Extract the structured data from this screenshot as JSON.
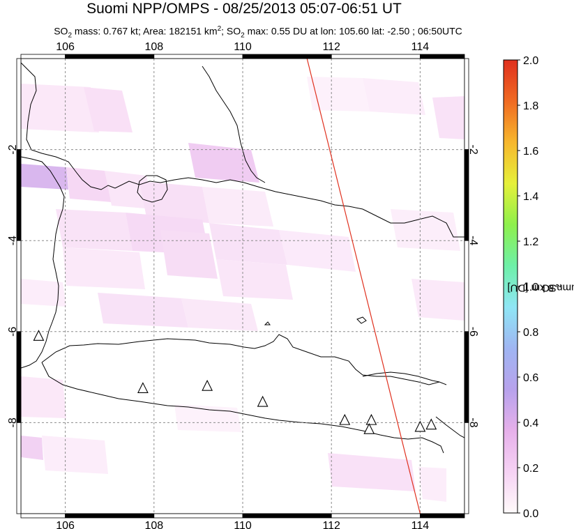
{
  "title": "Suomi NPP/OMPS - 08/25/2013 05:07-06:51 UT",
  "subtitle": {
    "prefix": "SO",
    "prefix_sub": "2",
    "mass": " mass: 0.767 kt; Area: 182151 km",
    "area_sup": "2",
    "sep": "; SO",
    "max_sub": "2",
    "rest": " max: 0.55 DU at lon: 105.60 lat: -2.50 ; 06:50UTC"
  },
  "map": {
    "lon_range": [
      105,
      115
    ],
    "lat_range": [
      -10,
      0
    ],
    "lon_ticks": [
      "106",
      "108",
      "110",
      "112",
      "114"
    ],
    "lat_ticks": [
      "-2",
      "-4",
      "-6",
      "-8"
    ],
    "orbit_line": {
      "from": {
        "lon": 111.45,
        "lat": 0
      },
      "to": {
        "lon": 114.0,
        "lat": -10
      },
      "color": "#e0301e"
    },
    "volcanoes": [
      {
        "lon": 105.4,
        "lat": -6.1
      },
      {
        "lon": 107.75,
        "lat": -7.25
      },
      {
        "lon": 109.2,
        "lat": -7.2
      },
      {
        "lon": 110.45,
        "lat": -7.55
      },
      {
        "lon": 112.3,
        "lat": -7.95
      },
      {
        "lon": 112.9,
        "lat": -7.95
      },
      {
        "lon": 112.85,
        "lat": -8.15
      },
      {
        "lon": 114.0,
        "lat": -8.1
      },
      {
        "lon": 114.25,
        "lat": -8.05
      }
    ]
  },
  "colorbar": {
    "label_main": "SO",
    "label_sub": "2",
    "label_rest": " column 8 km [DU]",
    "min": 0.0,
    "max": 2.0,
    "ticks": [
      "0.0",
      "0.2",
      "0.4",
      "0.6",
      "0.8",
      "1.0",
      "1.2",
      "1.4",
      "1.6",
      "1.8",
      "2.0"
    ],
    "colors": [
      "#fffafa",
      "#f6d2f4",
      "#e6b0ea",
      "#b7a2ec",
      "#9fb5f2",
      "#8fe6f5",
      "#6ef0a8",
      "#8ef04c",
      "#e6f03a",
      "#f7b72d",
      "#f06a22",
      "#e0301e"
    ]
  }
}
